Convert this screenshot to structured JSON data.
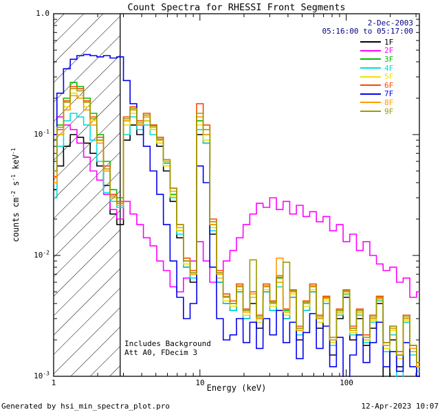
{
  "header": {
    "title": "Count Spectra for RHESSI Front Segments",
    "date": "2-Dec-2003",
    "interval": "05:16:00 to 05:17:00",
    "date_color": "#000080"
  },
  "footer": {
    "left": "Generated by hsi_min_spectra_plot.pro",
    "right": "12-Apr-2023 10:07"
  },
  "chart_data": {
    "type": "line",
    "style": "histogram-step",
    "title": "Count Spectra for RHESSI Front Segments",
    "xlabel": "Energy (keV)",
    "ylabel": "counts cm^-2 s^-1 keV^-1",
    "legend_position": "top-right-inside",
    "annotations": [
      "Includes Background",
      "Att A0, FDecim 3"
    ],
    "x_axis": {
      "scale": "log",
      "min": 1,
      "max": 316.23,
      "major_ticks": [
        1,
        10,
        100
      ],
      "major_labels": [
        "1",
        "10",
        "100"
      ],
      "minor_ticks": [
        2,
        3,
        4,
        5,
        6,
        7,
        8,
        9,
        20,
        30,
        40,
        50,
        60,
        70,
        80,
        90,
        200,
        300
      ]
    },
    "y_axis": {
      "scale": "log",
      "min": 0.001,
      "max": 1,
      "major_ticks": [
        1,
        0.1,
        0.01,
        0.001
      ],
      "major_labels": [
        "1.0",
        "10^-1",
        "10^-2",
        "10^-3"
      ],
      "minor_ticks": [
        0.002,
        0.003,
        0.004,
        0.005,
        0.006,
        0.007,
        0.008,
        0.009,
        0.02,
        0.03,
        0.04,
        0.05,
        0.06,
        0.07,
        0.08,
        0.09,
        0.2,
        0.3,
        0.4,
        0.5,
        0.6,
        0.7,
        0.8,
        0.9
      ]
    },
    "excluded_region": {
      "from": 1,
      "to": 2.85,
      "style": "hatched"
    },
    "energies": [
      1.0,
      1.11,
      1.23,
      1.37,
      1.52,
      1.69,
      1.87,
      2.08,
      2.31,
      2.56,
      2.85,
      3.16,
      3.51,
      3.9,
      4.33,
      4.81,
      5.34,
      5.93,
      6.59,
      7.32,
      8.13,
      9.03,
      10.0,
      11.1,
      12.3,
      13.7,
      15.2,
      16.9,
      18.7,
      20.8,
      23.1,
      25.6,
      28.5,
      31.6,
      35.1,
      39.0,
      43.3,
      48.1,
      53.4,
      59.3,
      65.9,
      73.2,
      81.3,
      90.3,
      100.3,
      111.4,
      123.8,
      137.5,
      152.7,
      169.6,
      188.4,
      209.3,
      232.5,
      258.2,
      286.8,
      318.6
    ],
    "series": [
      {
        "name": "1F",
        "color": "#000000",
        "values": [
          0.035,
          0.055,
          0.08,
          0.1,
          0.095,
          0.085,
          0.07,
          0.055,
          0.038,
          0.022,
          0.018,
          0.09,
          0.12,
          0.1,
          0.13,
          0.11,
          0.08,
          0.05,
          0.028,
          0.014,
          0.008,
          0.006,
          0.1,
          0.085,
          0.015,
          0.006,
          0.004,
          0.0035,
          0.005,
          0.003,
          0.004,
          0.0025,
          0.005,
          0.0035,
          0.006,
          0.003,
          0.0045,
          0.002,
          0.0035,
          0.005,
          0.0025,
          0.004,
          0.0015,
          0.003,
          0.0045,
          0.002,
          0.003,
          0.0018,
          0.0025,
          0.004,
          0.0009,
          0.002,
          0.0012,
          0.0028,
          0.0016,
          0.001
        ]
      },
      {
        "name": "2F",
        "color": "#ff00ff",
        "values": [
          0.1,
          0.14,
          0.12,
          0.11,
          0.085,
          0.065,
          0.05,
          0.042,
          0.032,
          0.024,
          0.02,
          0.028,
          0.022,
          0.018,
          0.014,
          0.012,
          0.009,
          0.0075,
          0.0055,
          0.005,
          0.0065,
          0.009,
          0.013,
          0.009,
          0.006,
          0.0065,
          0.009,
          0.011,
          0.014,
          0.018,
          0.022,
          0.027,
          0.025,
          0.03,
          0.024,
          0.028,
          0.022,
          0.026,
          0.021,
          0.023,
          0.019,
          0.021,
          0.016,
          0.018,
          0.013,
          0.015,
          0.011,
          0.013,
          0.01,
          0.0085,
          0.0075,
          0.008,
          0.006,
          0.0065,
          0.0045,
          0.005
        ]
      },
      {
        "name": "3F",
        "color": "#00bb00",
        "values": [
          0.05,
          0.12,
          0.2,
          0.27,
          0.25,
          0.2,
          0.15,
          0.1,
          0.06,
          0.035,
          0.03,
          0.13,
          0.16,
          0.12,
          0.14,
          0.12,
          0.09,
          0.058,
          0.032,
          0.016,
          0.009,
          0.007,
          0.13,
          0.1,
          0.018,
          0.007,
          0.0045,
          0.004,
          0.0055,
          0.0035,
          0.0045,
          0.003,
          0.0055,
          0.004,
          0.0065,
          0.0035,
          0.005,
          0.0025,
          0.004,
          0.0055,
          0.003,
          0.0045,
          0.002,
          0.0035,
          0.005,
          0.0025,
          0.0035,
          0.002,
          0.003,
          0.0045,
          0.0018,
          0.0025,
          0.0015,
          0.003,
          0.0018,
          0.0012
        ]
      },
      {
        "name": "4F",
        "color": "#00dddd",
        "values": [
          0.03,
          0.08,
          0.13,
          0.15,
          0.14,
          0.12,
          0.09,
          0.06,
          0.033,
          0.028,
          0.025,
          0.1,
          0.14,
          0.11,
          0.12,
          0.1,
          0.085,
          0.055,
          0.03,
          0.015,
          0.008,
          0.0065,
          0.11,
          0.085,
          0.016,
          0.006,
          0.004,
          0.0035,
          0.005,
          0.003,
          0.0045,
          0.0028,
          0.005,
          0.0035,
          0.0055,
          0.003,
          0.0045,
          0.0022,
          0.0035,
          0.005,
          0.0028,
          0.004,
          0.0018,
          0.0032,
          0.0048,
          0.0022,
          0.0032,
          0.0019,
          0.0028,
          0.0042,
          0.0016,
          0.0022,
          0.0008,
          0.0028,
          0.0015,
          0.0011
        ]
      },
      {
        "name": "5F",
        "color": "#f2e000",
        "values": [
          0.04,
          0.1,
          0.17,
          0.22,
          0.21,
          0.17,
          0.13,
          0.09,
          0.05,
          0.03,
          0.027,
          0.12,
          0.15,
          0.12,
          0.13,
          0.11,
          0.085,
          0.055,
          0.031,
          0.016,
          0.0085,
          0.007,
          0.12,
          0.09,
          0.017,
          0.0065,
          0.0042,
          0.0038,
          0.0052,
          0.0032,
          0.0045,
          0.0028,
          0.0052,
          0.0038,
          0.006,
          0.0032,
          0.0048,
          0.0024,
          0.0038,
          0.0052,
          0.0028,
          0.0042,
          0.0019,
          0.0033,
          0.0047,
          0.0023,
          0.0033,
          0.002,
          0.0029,
          0.0043,
          0.0017,
          0.0024,
          0.0014,
          0.0029,
          0.0016,
          0.0012
        ]
      },
      {
        "name": "6F",
        "color": "#ff4400",
        "values": [
          0.045,
          0.11,
          0.19,
          0.25,
          0.24,
          0.19,
          0.14,
          0.095,
          0.055,
          0.032,
          0.028,
          0.14,
          0.17,
          0.13,
          0.15,
          0.12,
          0.095,
          0.062,
          0.036,
          0.018,
          0.0095,
          0.0075,
          0.18,
          0.12,
          0.02,
          0.0075,
          0.0048,
          0.0042,
          0.0058,
          0.0036,
          0.005,
          0.0032,
          0.0058,
          0.0042,
          0.0068,
          0.0036,
          0.0052,
          0.0026,
          0.0042,
          0.0058,
          0.0032,
          0.0046,
          0.0021,
          0.0036,
          0.0052,
          0.0026,
          0.0036,
          0.0022,
          0.0032,
          0.0046,
          0.0019,
          0.0026,
          0.0016,
          0.0032,
          0.0018,
          0.0013
        ]
      },
      {
        "name": "7F",
        "color": "#0000ee",
        "values": [
          0.1,
          0.22,
          0.35,
          0.42,
          0.45,
          0.46,
          0.45,
          0.44,
          0.45,
          0.43,
          0.44,
          0.28,
          0.18,
          0.12,
          0.08,
          0.05,
          0.032,
          0.018,
          0.009,
          0.0045,
          0.003,
          0.004,
          0.055,
          0.04,
          0.008,
          0.003,
          0.002,
          0.0022,
          0.003,
          0.0019,
          0.0028,
          0.0017,
          0.003,
          0.0022,
          0.0035,
          0.0019,
          0.0028,
          0.0014,
          0.0023,
          0.0033,
          0.0017,
          0.0026,
          0.0012,
          0.0021,
          0.0008,
          0.0015,
          0.0022,
          0.0013,
          0.0019,
          0.0028,
          0.0012,
          0.0016,
          0.0011,
          0.0019,
          0.0012,
          0.001
        ]
      },
      {
        "name": "8F",
        "color": "#ff9900",
        "values": [
          0.04,
          0.1,
          0.16,
          0.21,
          0.2,
          0.16,
          0.12,
          0.085,
          0.05,
          0.03,
          0.026,
          0.13,
          0.16,
          0.12,
          0.14,
          0.115,
          0.09,
          0.06,
          0.034,
          0.017,
          0.009,
          0.007,
          0.14,
          0.1,
          0.018,
          0.007,
          0.0045,
          0.004,
          0.0055,
          0.0034,
          0.0048,
          0.003,
          0.0055,
          0.004,
          0.0095,
          0.0034,
          0.005,
          0.0024,
          0.004,
          0.0055,
          0.003,
          0.0044,
          0.002,
          0.0034,
          0.005,
          0.0024,
          0.0034,
          0.0021,
          0.003,
          0.0044,
          0.0018,
          0.0025,
          0.0015,
          0.003,
          0.0017,
          0.0012
        ]
      },
      {
        "name": "9F",
        "color": "#9b9b00",
        "values": [
          0.05,
          0.115,
          0.185,
          0.24,
          0.23,
          0.185,
          0.135,
          0.09,
          0.052,
          0.031,
          0.027,
          0.135,
          0.165,
          0.125,
          0.145,
          0.118,
          0.092,
          0.062,
          0.036,
          0.018,
          0.009,
          0.0072,
          0.15,
          0.11,
          0.019,
          0.0072,
          0.0046,
          0.004,
          0.0056,
          0.0035,
          0.0092,
          0.0031,
          0.0056,
          0.0041,
          0.0066,
          0.0088,
          0.0051,
          0.0025,
          0.0041,
          0.0056,
          0.0031,
          0.0045,
          0.0021,
          0.0035,
          0.0051,
          0.0025,
          0.0035,
          0.0021,
          0.0031,
          0.0045,
          0.0019,
          0.0026,
          0.0015,
          0.0031,
          0.0018,
          0.0013
        ]
      }
    ]
  }
}
